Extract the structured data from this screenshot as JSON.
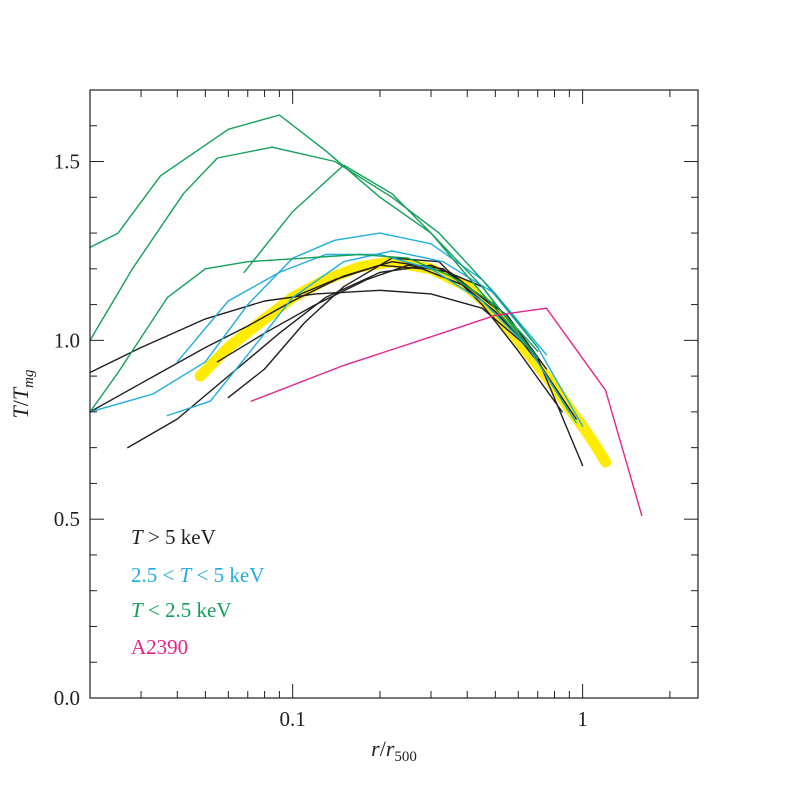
{
  "chart_data": {
    "type": "line",
    "xscale": "log",
    "xlim": [
      0.02,
      2.5
    ],
    "ylim": [
      0,
      1.7
    ],
    "xticks": [
      {
        "value": 0.1,
        "label": "0.1"
      },
      {
        "value": 1,
        "label": "1"
      }
    ],
    "yticks": [
      {
        "value": 0.0,
        "label": "0.0"
      },
      {
        "value": 0.5,
        "label": "0.5"
      },
      {
        "value": 1.0,
        "label": "1.0"
      },
      {
        "value": 1.5,
        "label": "1.5"
      }
    ],
    "xlabel": {
      "main": "r",
      "sep": "/",
      "sym": "r",
      "sub": "500"
    },
    "ylabel": {
      "main": "T",
      "sep": "/",
      "sym": "T",
      "sub": "mg"
    },
    "colors": {
      "hot": "#231f20",
      "mid": "#1eaee0",
      "cool": "#14a05a",
      "a2390": "#e4268a",
      "fit": "#ffec00"
    },
    "legend": {
      "placement": "bottom-left",
      "entries": [
        {
          "group": "hot",
          "pre": "",
          "var": "T",
          "post": " > 5 keV"
        },
        {
          "group": "mid",
          "pre": "2.5 < ",
          "var": "T",
          "post": " < 5 keV"
        },
        {
          "group": "cool",
          "pre": "",
          "var": "T",
          "post": " < 2.5 keV"
        },
        {
          "group": "a2390",
          "pre": "A2390",
          "var": "",
          "post": ""
        }
      ]
    },
    "series": [
      {
        "group": "fit",
        "x": [
          0.048,
          0.06,
          0.08,
          0.1,
          0.13,
          0.17,
          0.22,
          0.3,
          0.4,
          0.5,
          0.6,
          0.7,
          0.8,
          0.9,
          1.0,
          1.1,
          1.2
        ],
        "y": [
          0.9,
          0.98,
          1.06,
          1.12,
          1.17,
          1.205,
          1.22,
          1.2,
          1.15,
          1.08,
          1.0,
          0.93,
          0.87,
          0.81,
          0.76,
          0.71,
          0.66
        ]
      },
      {
        "group": "hot",
        "x": [
          0.02,
          0.03,
          0.05,
          0.08,
          0.12,
          0.2,
          0.3,
          0.45,
          0.65,
          0.95
        ],
        "y": [
          0.91,
          0.98,
          1.06,
          1.11,
          1.13,
          1.14,
          1.13,
          1.09,
          0.98,
          0.78
        ]
      },
      {
        "group": "hot",
        "x": [
          0.02,
          0.03,
          0.05,
          0.07,
          0.1,
          0.15,
          0.22,
          0.33,
          0.5,
          0.7
        ],
        "y": [
          0.8,
          0.88,
          0.98,
          1.04,
          1.11,
          1.18,
          1.22,
          1.2,
          1.08,
          0.95
        ]
      },
      {
        "group": "hot",
        "x": [
          0.027,
          0.04,
          0.06,
          0.09,
          0.13,
          0.2,
          0.3,
          0.45,
          0.7,
          1.0
        ],
        "y": [
          0.7,
          0.78,
          0.9,
          1.02,
          1.12,
          1.19,
          1.21,
          1.15,
          0.95,
          0.65
        ]
      },
      {
        "group": "hot",
        "x": [
          0.06,
          0.08,
          0.11,
          0.15,
          0.22,
          0.32,
          0.45,
          0.6,
          0.85
        ],
        "y": [
          0.84,
          0.92,
          1.05,
          1.15,
          1.23,
          1.22,
          1.1,
          0.97,
          0.8
        ]
      },
      {
        "group": "hot",
        "x": [
          0.055,
          0.08,
          0.12,
          0.18,
          0.25,
          0.35,
          0.5,
          0.7,
          0.9
        ],
        "y": [
          0.94,
          1.02,
          1.1,
          1.17,
          1.21,
          1.19,
          1.09,
          0.94,
          0.8
        ]
      },
      {
        "group": "hot",
        "x": [
          0.1,
          0.14,
          0.2,
          0.28,
          0.4,
          0.55,
          0.75
        ],
        "y": [
          1.12,
          1.17,
          1.21,
          1.2,
          1.15,
          1.07,
          0.92
        ]
      },
      {
        "group": "mid",
        "x": [
          0.02,
          0.033,
          0.05,
          0.07,
          0.1,
          0.14,
          0.2,
          0.3,
          0.45,
          0.7,
          1.0
        ],
        "y": [
          0.8,
          0.85,
          0.94,
          1.1,
          1.23,
          1.28,
          1.3,
          1.27,
          1.17,
          0.98,
          0.76
        ]
      },
      {
        "group": "mid",
        "x": [
          0.04,
          0.06,
          0.09,
          0.13,
          0.2,
          0.3,
          0.45,
          0.65,
          0.95
        ],
        "y": [
          0.94,
          1.11,
          1.19,
          1.24,
          1.24,
          1.2,
          1.11,
          0.98,
          0.77
        ]
      },
      {
        "group": "mid",
        "x": [
          0.037,
          0.052,
          0.07,
          0.1,
          0.15,
          0.22,
          0.33,
          0.5,
          0.75
        ],
        "y": [
          0.79,
          0.83,
          0.96,
          1.12,
          1.22,
          1.25,
          1.22,
          1.13,
          0.96
        ]
      },
      {
        "group": "cool",
        "x": [
          0.02,
          0.025,
          0.035,
          0.06,
          0.09,
          0.13,
          0.2,
          0.3,
          0.45,
          0.7
        ],
        "y": [
          1.26,
          1.3,
          1.46,
          1.59,
          1.63,
          1.53,
          1.4,
          1.3,
          1.15,
          0.95
        ]
      },
      {
        "group": "cool",
        "x": [
          0.02,
          0.028,
          0.042,
          0.055,
          0.085,
          0.14,
          0.22,
          0.32,
          0.5,
          0.7
        ],
        "y": [
          1.0,
          1.2,
          1.41,
          1.51,
          1.54,
          1.5,
          1.4,
          1.3,
          1.13,
          0.98
        ]
      },
      {
        "group": "cool",
        "x": [
          0.02,
          0.025,
          0.037,
          0.05,
          0.07,
          0.11,
          0.17,
          0.25,
          0.35,
          0.5,
          0.7
        ],
        "y": [
          0.8,
          0.91,
          1.12,
          1.2,
          1.22,
          1.23,
          1.24,
          1.23,
          1.18,
          1.1,
          0.97
        ]
      },
      {
        "group": "cool",
        "x": [
          0.068,
          0.1,
          0.15,
          0.22,
          0.3,
          0.4,
          0.55,
          0.7
        ],
        "y": [
          1.19,
          1.36,
          1.49,
          1.41,
          1.3,
          1.18,
          1.05,
          0.95
        ]
      },
      {
        "group": "a2390",
        "x": [
          0.072,
          0.15,
          0.3,
          0.5,
          0.75,
          1.2,
          1.6
        ],
        "y": [
          0.83,
          0.93,
          1.01,
          1.07,
          1.09,
          0.86,
          0.51
        ]
      }
    ]
  }
}
